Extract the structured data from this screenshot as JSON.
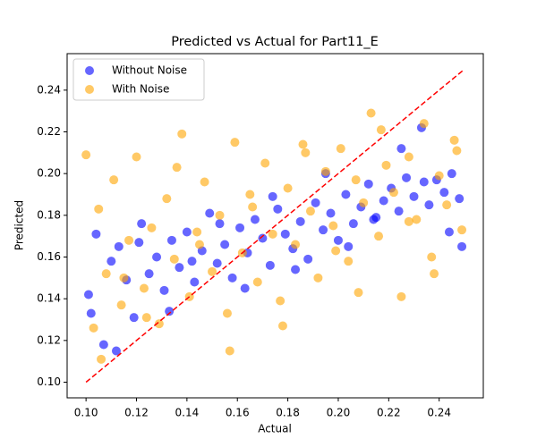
{
  "chart_data": {
    "type": "scatter",
    "title": "Predicted vs Actual for Part11_E",
    "x_label": "Actual",
    "y_label": "Predicted",
    "legend": "upper left",
    "alpha": 0.6,
    "xlim": [
      0.0925,
      0.2575
    ],
    "ylim": [
      0.0925,
      0.2575
    ],
    "xticks": [
      {
        "value": 0.1,
        "label": "0.10"
      },
      {
        "value": 0.12,
        "label": "0.12"
      },
      {
        "value": 0.14,
        "label": "0.14"
      },
      {
        "value": 0.16,
        "label": "0.16"
      },
      {
        "value": 0.18,
        "label": "0.18"
      },
      {
        "value": 0.2,
        "label": "0.20"
      },
      {
        "value": 0.22,
        "label": "0.22"
      },
      {
        "value": 0.24,
        "label": "0.24"
      }
    ],
    "yticks": [
      {
        "value": 0.1,
        "label": "0.10"
      },
      {
        "value": 0.12,
        "label": "0.12"
      },
      {
        "value": 0.14,
        "label": "0.14"
      },
      {
        "value": 0.16,
        "label": "0.16"
      },
      {
        "value": 0.18,
        "label": "0.18"
      },
      {
        "value": 0.2,
        "label": "0.20"
      },
      {
        "value": 0.22,
        "label": "0.22"
      },
      {
        "value": 0.24,
        "label": "0.24"
      }
    ],
    "series": [
      {
        "name": "Without Noise",
        "color": "#0000ff",
        "x": [
          0.101,
          0.104,
          0.107,
          0.11,
          0.113,
          0.116,
          0.119,
          0.122,
          0.125,
          0.128,
          0.131,
          0.134,
          0.137,
          0.14,
          0.143,
          0.146,
          0.149,
          0.152,
          0.155,
          0.158,
          0.161,
          0.164,
          0.167,
          0.17,
          0.173,
          0.176,
          0.179,
          0.182,
          0.185,
          0.188,
          0.191,
          0.194,
          0.197,
          0.2,
          0.203,
          0.206,
          0.209,
          0.212,
          0.215,
          0.218,
          0.221,
          0.224,
          0.227,
          0.23,
          0.233,
          0.236,
          0.239,
          0.242,
          0.245,
          0.248,
          0.102,
          0.112,
          0.121,
          0.133,
          0.142,
          0.153,
          0.163,
          0.174,
          0.183,
          0.195,
          0.204,
          0.214,
          0.225,
          0.234,
          0.244,
          0.249
        ],
        "values": [
          0.142,
          0.171,
          0.118,
          0.158,
          0.165,
          0.149,
          0.131,
          0.176,
          0.152,
          0.16,
          0.144,
          0.168,
          0.155,
          0.172,
          0.148,
          0.163,
          0.181,
          0.157,
          0.166,
          0.15,
          0.174,
          0.162,
          0.178,
          0.169,
          0.156,
          0.183,
          0.171,
          0.164,
          0.177,
          0.159,
          0.186,
          0.173,
          0.181,
          0.168,
          0.19,
          0.176,
          0.184,
          0.195,
          0.179,
          0.187,
          0.193,
          0.182,
          0.198,
          0.189,
          0.222,
          0.185,
          0.197,
          0.191,
          0.2,
          0.188,
          0.133,
          0.115,
          0.167,
          0.134,
          0.158,
          0.176,
          0.145,
          0.189,
          0.154,
          0.2,
          0.165,
          0.178,
          0.212,
          0.196,
          0.172,
          0.165
        ]
      },
      {
        "name": "With Noise",
        "color": "#ffa500",
        "x": [
          0.1,
          0.103,
          0.105,
          0.108,
          0.111,
          0.114,
          0.117,
          0.12,
          0.123,
          0.126,
          0.129,
          0.132,
          0.135,
          0.138,
          0.141,
          0.144,
          0.147,
          0.15,
          0.153,
          0.156,
          0.159,
          0.162,
          0.165,
          0.168,
          0.171,
          0.174,
          0.177,
          0.18,
          0.183,
          0.186,
          0.189,
          0.192,
          0.195,
          0.198,
          0.201,
          0.204,
          0.207,
          0.21,
          0.213,
          0.216,
          0.219,
          0.222,
          0.225,
          0.228,
          0.231,
          0.234,
          0.237,
          0.24,
          0.243,
          0.246,
          0.249,
          0.106,
          0.115,
          0.124,
          0.136,
          0.145,
          0.157,
          0.166,
          0.178,
          0.187,
          0.199,
          0.208,
          0.217,
          0.228,
          0.238,
          0.247
        ],
        "values": [
          0.209,
          0.126,
          0.183,
          0.152,
          0.197,
          0.137,
          0.168,
          0.208,
          0.145,
          0.174,
          0.128,
          0.188,
          0.159,
          0.219,
          0.141,
          0.172,
          0.196,
          0.153,
          0.18,
          0.133,
          0.215,
          0.162,
          0.19,
          0.148,
          0.205,
          0.171,
          0.139,
          0.193,
          0.166,
          0.214,
          0.182,
          0.15,
          0.201,
          0.175,
          0.212,
          0.158,
          0.197,
          0.186,
          0.229,
          0.17,
          0.204,
          0.191,
          0.141,
          0.208,
          0.178,
          0.224,
          0.16,
          0.199,
          0.185,
          0.216,
          0.173,
          0.111,
          0.15,
          0.131,
          0.203,
          0.166,
          0.115,
          0.184,
          0.127,
          0.21,
          0.163,
          0.143,
          0.221,
          0.177,
          0.152,
          0.211
        ]
      }
    ],
    "diagonal": {
      "x": [
        0.1,
        0.25
      ],
      "values": [
        0.1,
        0.25
      ],
      "color": "#ff0000"
    }
  }
}
